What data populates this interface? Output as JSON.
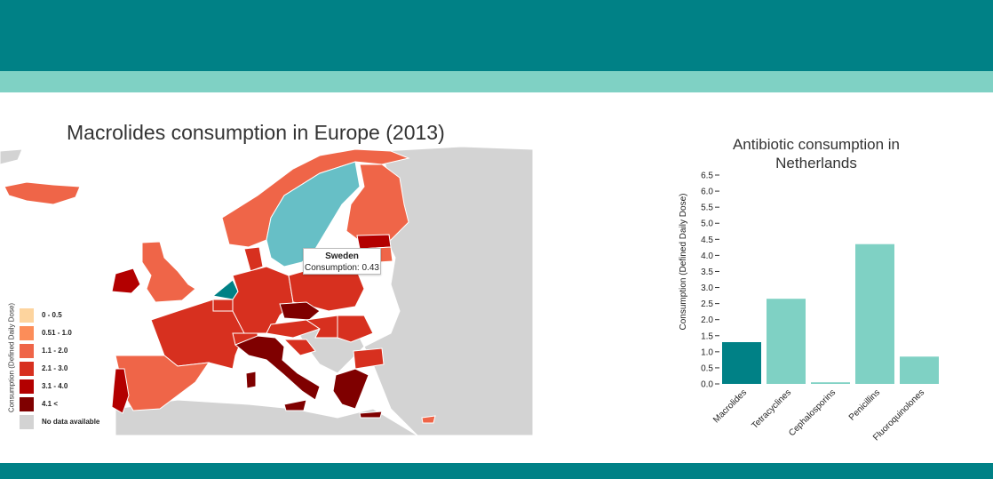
{
  "theme": {
    "header_color": "#008186",
    "subheader_color": "#7fd1c4",
    "footer_color": "#008186",
    "sea_color": "#ffffff",
    "no_data_color": "#d3d3d3",
    "highlight_color": "#008186",
    "selected_color": "#67bfc6"
  },
  "map": {
    "title": "Macrolides consumption in Europe (2013)",
    "legend_title": "Consumption (Defined Daily Dose)",
    "legend": [
      {
        "label": "0 - 0.5",
        "color": "#fdd49e"
      },
      {
        "label": "0.51 - 1.0",
        "color": "#fc8d59"
      },
      {
        "label": "1.1 - 2.0",
        "color": "#ef6548"
      },
      {
        "label": "2.1 - 3.0",
        "color": "#d7301f"
      },
      {
        "label": "3.1 - 4.0",
        "color": "#b30000"
      },
      {
        "label": "4.1 <",
        "color": "#7f0000"
      },
      {
        "label": "No data available",
        "color": "#d3d3d3"
      }
    ],
    "tooltip": {
      "country": "Sweden",
      "label": "Consumption: 0.43"
    }
  },
  "chart_data": {
    "type": "bar",
    "title": "Antibiotic consumption in Netherlands",
    "title_lines": [
      "Antibiotic consumption in",
      "Netherlands"
    ],
    "ylabel": "Consumption (Defined Daily Dose)",
    "xlabel": "",
    "categories": [
      "Macrolides",
      "Tetracyclines",
      "Cephalosporins",
      "Penicillins",
      "Fluoroquinolones"
    ],
    "values": [
      1.3,
      2.65,
      0.05,
      4.35,
      0.85
    ],
    "colors": [
      "#008186",
      "#7fd1c4",
      "#7fd1c4",
      "#7fd1c4",
      "#7fd1c4"
    ],
    "ylim": [
      0,
      6.5
    ],
    "yticks": [
      "0.0",
      "0.5",
      "1.0",
      "1.5",
      "2.0",
      "2.5",
      "3.0",
      "3.5",
      "4.0",
      "4.5",
      "5.0",
      "5.5",
      "6.0",
      "6.5"
    ],
    "grid": false,
    "legend": "none"
  }
}
